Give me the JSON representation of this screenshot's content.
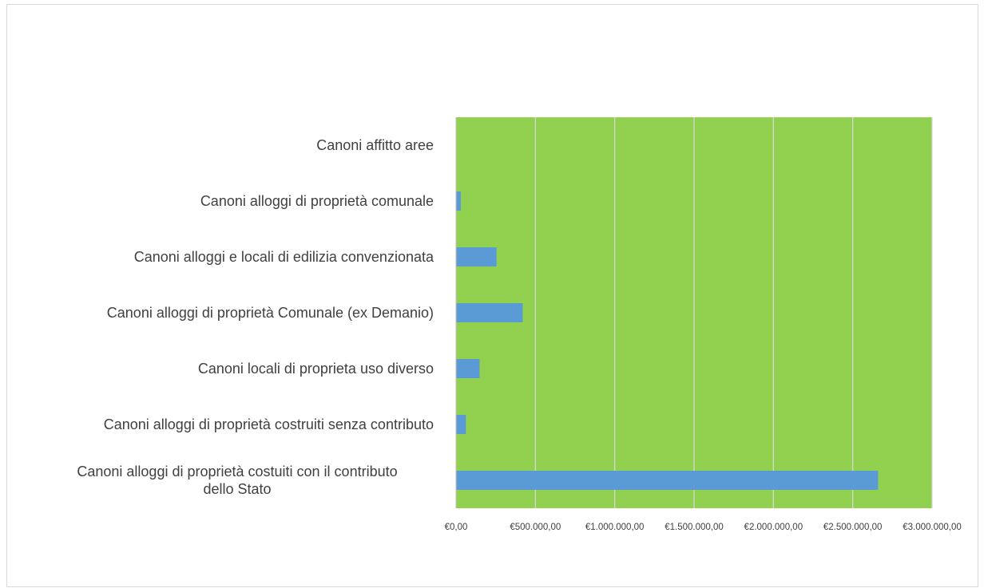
{
  "chart_data": {
    "type": "bar",
    "orientation": "horizontal",
    "categories": [
      "Canoni affitto aree",
      "Canoni alloggi di proprietà comunale",
      "Canoni alloggi e locali di edilizia convenzionata",
      "Canoni alloggi di proprietà Comunale (ex Demanio)",
      "Canoni locali di proprieta uso diverso",
      "Canoni alloggi di proprietà costruiti senza contributo",
      "Canoni alloggi di proprietà costuiti con il contributo dello Stato"
    ],
    "category_lines": [
      [
        "Canoni affitto aree"
      ],
      [
        "Canoni alloggi di proprietà comunale"
      ],
      [
        "Canoni alloggi e locali di edilizia convenzionata"
      ],
      [
        "Canoni alloggi di proprietà Comunale (ex Demanio)"
      ],
      [
        "Canoni locali di proprieta uso diverso"
      ],
      [
        "Canoni alloggi di proprietà costruiti senza contributo"
      ],
      [
        "Canoni alloggi di proprietà costuiti con il contributo",
        "dello Stato"
      ]
    ],
    "values": [
      0,
      30000,
      255000,
      420000,
      148000,
      62000,
      2660000
    ],
    "xlim": [
      0,
      3000000
    ],
    "ticks": [
      0,
      500000,
      1000000,
      1500000,
      2000000,
      2500000,
      3000000
    ],
    "tick_labels": [
      "€0,00",
      "€500.000,00",
      "€1.000.000,00",
      "€1.500.000,00",
      "€2.000.000,00",
      "€2.500.000,00",
      "€3.000.000,00"
    ],
    "title": "",
    "xlabel": "",
    "ylabel": "",
    "grid": true,
    "legend": "none",
    "colors": {
      "bar": "#5b9bd5",
      "plot_background": "#92d050",
      "gridline": "#d9d9d9",
      "text": "#404040"
    }
  }
}
